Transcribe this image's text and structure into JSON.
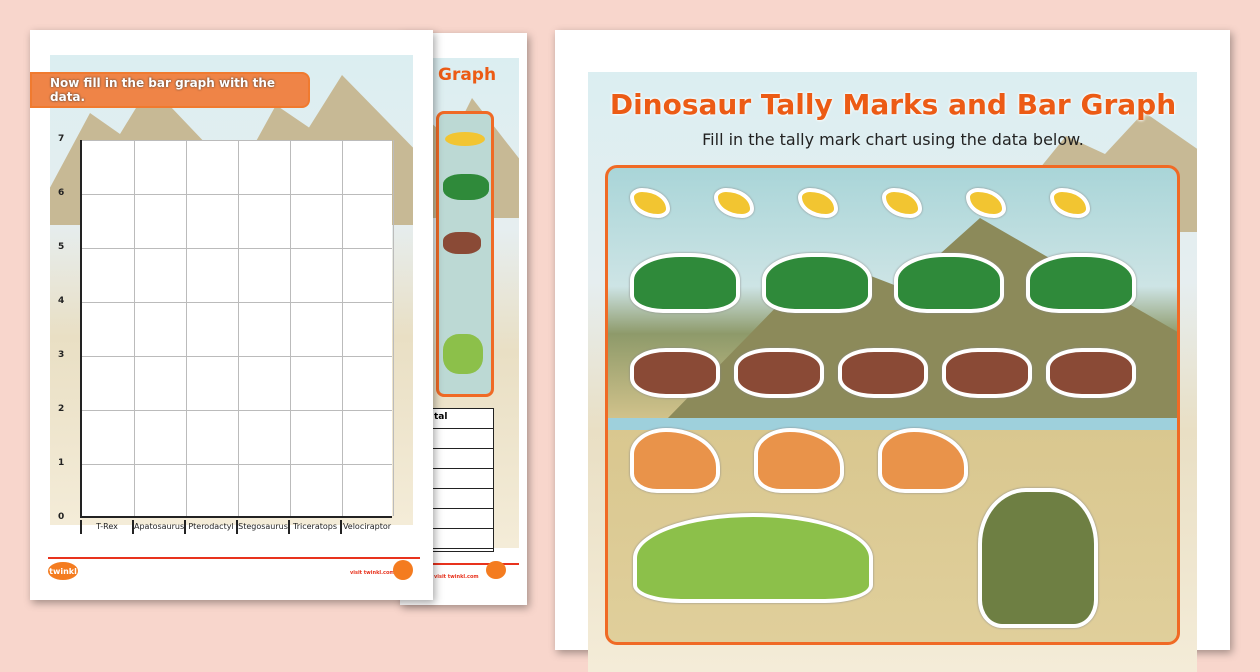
{
  "worksheet_bar_graph": {
    "instruction": "Now fill in the bar graph with the data.",
    "y_ticks": [
      "0",
      "1",
      "2",
      "3",
      "4",
      "5",
      "6",
      "7"
    ],
    "categories": [
      "T-Rex",
      "Apatosaurus",
      "Pterodactyl",
      "Stegosaurus",
      "Triceratops",
      "Velociraptor"
    ],
    "footer_url": "visit twinkl.com",
    "logo": "twinkl"
  },
  "worksheet_tally": {
    "title_partial": "Graph",
    "table_header_partial": "tal",
    "footer_url": "visit twinkl.com"
  },
  "worksheet_main": {
    "title": "Dinosaur Tally Marks and Bar Graph",
    "subtitle": "Fill in the tally mark chart using the data below.",
    "dinosaurs": [
      {
        "type": "pterodactyl",
        "count": 6,
        "color": "#f2c531"
      },
      {
        "type": "stegosaurus",
        "count": 4,
        "color": "#2f8a3a"
      },
      {
        "type": "triceratops",
        "count": 5,
        "color": "#8a4a36"
      },
      {
        "type": "velociraptor",
        "count": 3,
        "color": "#e9934a"
      },
      {
        "type": "apatosaurus",
        "count": 1,
        "color": "#8cc04a"
      },
      {
        "type": "t-rex",
        "count": 1,
        "color": "#6e7f43"
      }
    ]
  },
  "colors": {
    "background": "#f8d6cc",
    "accent": "#ec5b15",
    "banner": "#ef8447"
  }
}
